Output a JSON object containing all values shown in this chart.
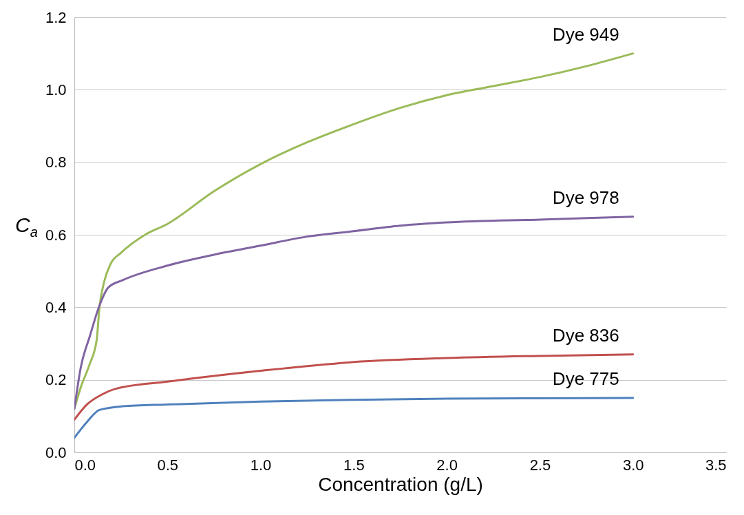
{
  "chart_data": {
    "type": "line",
    "xlabel": "Concentration (g/L)",
    "ylabel": "C$_{a}$",
    "xlim": [
      0,
      3.5
    ],
    "xticks": [
      {
        "value": 0,
        "label": "0.0"
      },
      0.5,
      {
        "value": 1,
        "label": "1.0"
      },
      1.5,
      {
        "value": 2,
        "label": "2.0"
      },
      2.5,
      {
        "value": 3,
        "label": "3.0"
      },
      3.5
    ],
    "ylim": [
      0,
      1.2
    ],
    "yticks": [
      {
        "value": 0,
        "label": "0.0"
      },
      0.2,
      0.4,
      0.6,
      0.8,
      {
        "value": 1,
        "label": "1.0"
      },
      1.2
    ],
    "grid": "y",
    "legend": false,
    "marker": "none",
    "line_style": "solid",
    "series": [
      {
        "name": "Dye 949",
        "color": "#9bbb59",
        "x": [
          0,
          0.035,
          0.08,
          0.12,
          0.135,
          0.16,
          0.195,
          0.25,
          0.38,
          0.5,
          0.75,
          1.0,
          1.25,
          1.5,
          1.75,
          2.0,
          2.25,
          2.5,
          2.75,
          3.0
        ],
        "values": [
          0.12,
          0.18,
          0.24,
          0.31,
          0.4,
          0.47,
          0.52,
          0.55,
          0.6,
          0.63,
          0.72,
          0.795,
          0.855,
          0.905,
          0.95,
          0.985,
          1.01,
          1.035,
          1.065,
          1.1
        ]
      },
      {
        "name": "Dye 978",
        "color": "#8064a2",
        "x": [
          0,
          0.035,
          0.083,
          0.135,
          0.183,
          0.26,
          0.5,
          0.75,
          1.0,
          1.25,
          1.5,
          1.75,
          2.0,
          2.5,
          3.0
        ],
        "values": [
          0.12,
          0.235,
          0.32,
          0.405,
          0.455,
          0.475,
          0.515,
          0.545,
          0.57,
          0.595,
          0.61,
          0.625,
          0.634,
          0.642,
          0.65
        ]
      },
      {
        "name": "Dye 836",
        "color": "#c0504d",
        "x": [
          0,
          0.07,
          0.15,
          0.22,
          0.5,
          1.0,
          1.5,
          2.0,
          2.5,
          3.0
        ],
        "values": [
          0.09,
          0.133,
          0.16,
          0.175,
          0.195,
          0.225,
          0.249,
          0.26,
          0.266,
          0.27
        ]
      },
      {
        "name": "Dye 775",
        "color": "#4f81bd",
        "x": [
          0,
          0.07,
          0.135,
          0.26,
          0.5,
          1.0,
          1.5,
          2.0,
          2.5,
          3.0
        ],
        "values": [
          0.04,
          0.085,
          0.117,
          0.127,
          0.132,
          0.14,
          0.145,
          0.148,
          0.149,
          0.15
        ]
      }
    ]
  }
}
